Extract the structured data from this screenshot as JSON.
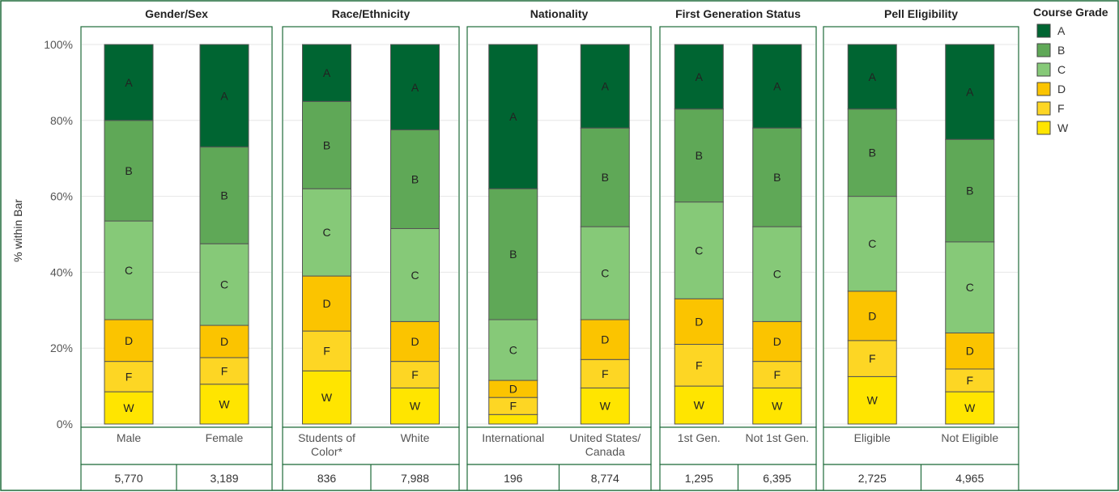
{
  "chart_data": {
    "type": "bar",
    "stacked": true,
    "ylabel": "% within Bar",
    "yticks": [
      "0%",
      "20%",
      "40%",
      "60%",
      "80%",
      "100%"
    ],
    "ylim": [
      0,
      100
    ],
    "grid": true,
    "legend": {
      "title": "Course Grade",
      "placement": "right",
      "entries": [
        "A",
        "B",
        "C",
        "D",
        "F",
        "W"
      ]
    },
    "colors": {
      "A": "#006532",
      "B": "#5fa857",
      "C": "#86c978",
      "D": "#fbc400",
      "F": "#fdd624",
      "W": "#ffe500"
    },
    "stack_order": [
      "W",
      "F",
      "D",
      "C",
      "B",
      "A"
    ],
    "panels": [
      {
        "title": "Gender/Sex",
        "bars": [
          {
            "category": [
              "Male"
            ],
            "n": "5,770",
            "values": {
              "W": 8.5,
              "F": 8.0,
              "D": 11.0,
              "C": 26.0,
              "B": 26.5,
              "A": 20.0
            }
          },
          {
            "category": [
              "Female"
            ],
            "n": "3,189",
            "values": {
              "W": 10.5,
              "F": 7.0,
              "D": 8.5,
              "C": 21.5,
              "B": 25.5,
              "A": 27.0
            }
          }
        ]
      },
      {
        "title": "Race/Ethnicity",
        "bars": [
          {
            "category": [
              "Students of",
              "Color*"
            ],
            "n": "836",
            "values": {
              "W": 14.0,
              "F": 10.5,
              "D": 14.5,
              "C": 23.0,
              "B": 23.0,
              "A": 15.0
            }
          },
          {
            "category": [
              "White"
            ],
            "n": "7,988",
            "values": {
              "W": 9.5,
              "F": 7.0,
              "D": 10.5,
              "C": 24.5,
              "B": 26.0,
              "A": 22.5
            }
          }
        ]
      },
      {
        "title": "Nationality",
        "bars": [
          {
            "category": [
              "International"
            ],
            "n": "196",
            "values": {
              "W": 2.5,
              "F": 4.5,
              "D": 4.5,
              "C": 16.0,
              "B": 34.5,
              "A": 38.0
            }
          },
          {
            "category": [
              "United States/",
              "Canada"
            ],
            "n": "8,774",
            "values": {
              "W": 9.5,
              "F": 7.5,
              "D": 10.5,
              "C": 24.5,
              "B": 26.0,
              "A": 22.0
            }
          }
        ]
      },
      {
        "title": "First Generation Status",
        "bars": [
          {
            "category": [
              "1st Gen."
            ],
            "n": "1,295",
            "values": {
              "W": 10.0,
              "F": 11.0,
              "D": 12.0,
              "C": 25.5,
              "B": 24.5,
              "A": 17.0
            }
          },
          {
            "category": [
              "Not 1st Gen."
            ],
            "n": "6,395",
            "values": {
              "W": 9.5,
              "F": 7.0,
              "D": 10.5,
              "C": 25.0,
              "B": 26.0,
              "A": 22.0
            }
          }
        ]
      },
      {
        "title": "Pell Eligibility",
        "bars": [
          {
            "category": [
              "Eligible"
            ],
            "n": "2,725",
            "values": {
              "W": 12.5,
              "F": 9.5,
              "D": 13.0,
              "C": 25.0,
              "B": 23.0,
              "A": 17.0
            }
          },
          {
            "category": [
              "Not Eligible"
            ],
            "n": "4,965",
            "values": {
              "W": 8.5,
              "F": 6.0,
              "D": 9.5,
              "C": 24.0,
              "B": 27.0,
              "A": 25.0
            }
          }
        ]
      }
    ]
  }
}
